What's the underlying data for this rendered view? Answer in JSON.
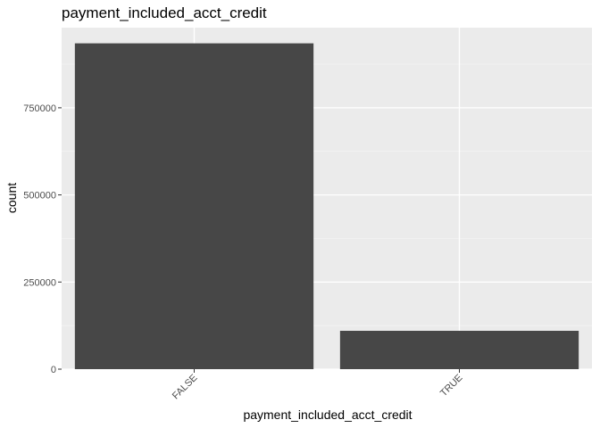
{
  "chart_data": {
    "type": "bar",
    "title": "payment_included_acct_credit",
    "xlabel": "payment_included_acct_credit",
    "ylabel": "count",
    "categories": [
      "FALSE",
      "TRUE"
    ],
    "values": [
      935000,
      110000
    ],
    "ylim": [
      0,
      980000
    ],
    "yticks": [
      0,
      250000,
      500000,
      750000
    ],
    "ytick_labels": [
      "0",
      "250000",
      "500000",
      "750000"
    ],
    "grid": true,
    "x_tick_rotation": 45,
    "colors": {
      "panel": "#ebebeb",
      "bar": "#474747",
      "grid_major": "#ffffff",
      "grid_minor": "#f5f5f5",
      "tick": "#333333"
    }
  }
}
